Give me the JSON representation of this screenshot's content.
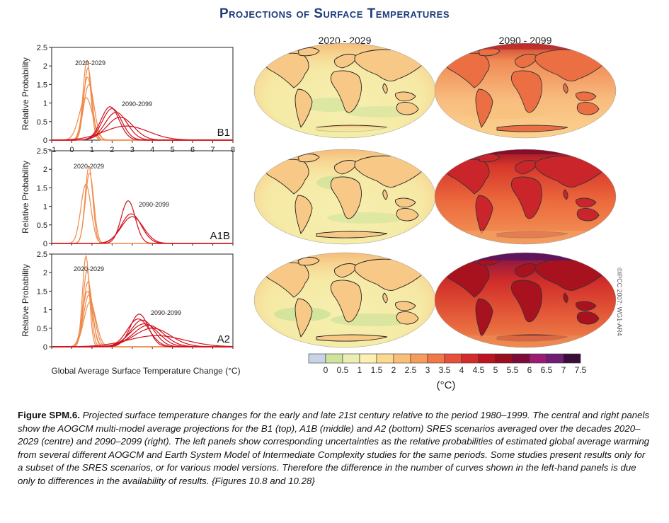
{
  "title": "Projections of Surface Temperatures",
  "copyright": "©IPCC 2007: WG1-AR4",
  "colors": {
    "title": "#1d3c7a",
    "early": "#f08a4b",
    "late": "#d0101e"
  },
  "map_columns": [
    "2020 - 2029",
    "2090 - 2099"
  ],
  "colorbar": {
    "label": "(°C)",
    "ticks": [
      "0",
      "0.5",
      "1",
      "1.5",
      "2",
      "2.5",
      "3",
      "3.5",
      "4",
      "4.5",
      "5",
      "5.5",
      "6",
      "6.5",
      "7",
      "7.5"
    ],
    "colors": [
      "#c9d3e7",
      "#cfe39a",
      "#ecedb3",
      "#fbf0b2",
      "#fbd98d",
      "#f9bf77",
      "#f59c5d",
      "#ef7748",
      "#e6503a",
      "#d42c2b",
      "#bd1421",
      "#9a0e1e",
      "#7e0a3c",
      "#9c1a74",
      "#721c73",
      "#3a0e3a"
    ]
  },
  "chart_data": [
    {
      "type": "line",
      "panel": "B1",
      "ylabel": "Relative Probability",
      "xlabel": "Global Average Surface Temperature Change (°C)",
      "xlim": [
        -1,
        8
      ],
      "ylim": [
        0,
        2.5
      ],
      "xticks": [
        "−1",
        "0",
        "1",
        "2",
        "3",
        "4",
        "5",
        "6",
        "7",
        "8"
      ],
      "yticks": [
        "0",
        "0.5",
        "1",
        "1.5",
        "2",
        "2.5"
      ],
      "annotations": [
        "2020-2029",
        "2090-2099"
      ],
      "series": [
        {
          "period": "2020-2029",
          "peak_x": 0.75,
          "peak_y": 2.15,
          "sigma": 0.19
        },
        {
          "period": "2020-2029",
          "peak_x": 0.8,
          "peak_y": 1.95,
          "sigma": 0.2
        },
        {
          "period": "2020-2029",
          "peak_x": 0.78,
          "peak_y": 1.7,
          "sigma": 0.23
        },
        {
          "period": "2020-2029",
          "peak_x": 0.85,
          "peak_y": 1.5,
          "sigma": 0.26
        },
        {
          "period": "2020-2029",
          "peak_x": 0.7,
          "peak_y": 1.15,
          "sigma": 0.33
        },
        {
          "period": "2090-2099",
          "peak_x": 1.9,
          "peak_y": 0.9,
          "sigma": 0.45
        },
        {
          "period": "2090-2099",
          "peak_x": 2.0,
          "peak_y": 0.85,
          "sigma": 0.48
        },
        {
          "period": "2090-2099",
          "peak_x": 2.2,
          "peak_y": 0.75,
          "sigma": 0.55
        },
        {
          "period": "2090-2099",
          "peak_x": 2.4,
          "peak_y": 0.62,
          "sigma": 0.65
        },
        {
          "period": "2090-2099",
          "peak_x": 2.7,
          "peak_y": 0.38,
          "sigma": 1.1
        }
      ]
    },
    {
      "type": "line",
      "panel": "A1B",
      "ylabel": "Relative Probability",
      "xlim": [
        -1,
        8
      ],
      "ylim": [
        0,
        2.5
      ],
      "yticks": [
        "0",
        "0.5",
        "1",
        "1.5",
        "2",
        "2.5"
      ],
      "annotations": [
        "2020-2029",
        "2090-2099"
      ],
      "series": [
        {
          "period": "2020-2029",
          "peak_x": 0.85,
          "peak_y": 2.08,
          "sigma": 0.19
        },
        {
          "period": "2020-2029",
          "peak_x": 0.88,
          "peak_y": 1.9,
          "sigma": 0.21
        },
        {
          "period": "2020-2029",
          "peak_x": 0.7,
          "peak_y": 1.6,
          "sigma": 0.25
        },
        {
          "period": "2090-2099",
          "peak_x": 2.8,
          "peak_y": 1.15,
          "sigma": 0.35
        },
        {
          "period": "2090-2099",
          "peak_x": 2.95,
          "peak_y": 0.8,
          "sigma": 0.5
        },
        {
          "period": "2090-2099",
          "peak_x": 3.0,
          "peak_y": 0.72,
          "sigma": 0.55
        }
      ]
    },
    {
      "type": "line",
      "panel": "A2",
      "ylabel": "Relative Probability",
      "xlim": [
        -1,
        8
      ],
      "ylim": [
        0,
        2.5
      ],
      "yticks": [
        "0",
        "0.5",
        "1",
        "1.5",
        "2",
        "2.5"
      ],
      "annotations": [
        "2020-2029",
        "2090-2099"
      ],
      "series": [
        {
          "period": "2020-2029",
          "peak_x": 0.7,
          "peak_y": 2.45,
          "sigma": 0.17
        },
        {
          "period": "2020-2029",
          "peak_x": 0.75,
          "peak_y": 2.05,
          "sigma": 0.19
        },
        {
          "period": "2020-2029",
          "peak_x": 0.8,
          "peak_y": 1.75,
          "sigma": 0.22
        },
        {
          "period": "2020-2029",
          "peak_x": 0.78,
          "peak_y": 1.5,
          "sigma": 0.25
        },
        {
          "period": "2020-2029",
          "peak_x": 0.85,
          "peak_y": 1.4,
          "sigma": 0.27
        },
        {
          "period": "2020-2029",
          "peak_x": 0.9,
          "peak_y": 1.2,
          "sigma": 0.3
        },
        {
          "period": "2090-2099",
          "peak_x": 3.35,
          "peak_y": 0.88,
          "sigma": 0.45
        },
        {
          "period": "2090-2099",
          "peak_x": 3.3,
          "peak_y": 0.75,
          "sigma": 0.55
        },
        {
          "period": "2090-2099",
          "peak_x": 3.5,
          "peak_y": 0.72,
          "sigma": 0.58
        },
        {
          "period": "2090-2099",
          "peak_x": 3.6,
          "peak_y": 0.62,
          "sigma": 0.7
        },
        {
          "period": "2090-2099",
          "peak_x": 3.8,
          "peak_y": 0.58,
          "sigma": 0.75
        },
        {
          "period": "2090-2099",
          "peak_x": 4.0,
          "peak_y": 0.5,
          "sigma": 0.9
        },
        {
          "period": "2090-2099",
          "peak_x": 4.2,
          "peak_y": 0.3,
          "sigma": 1.4
        }
      ]
    }
  ],
  "caption": {
    "label": "Figure SPM.6.",
    "text": " Projected surface temperature changes for the early and late 21st century relative to the period 1980–1999. The central and right panels show the AOGCM multi-model average projections for the B1 (top), A1B (middle) and A2 (bottom) SRES scenarios averaged over the decades 2020– 2029 (centre) and 2090–2099 (right). The left panels show corresponding uncertainties as the relative probabilities of estimated global average warming from several different AOGCM and Earth System Model of Intermediate Complexity studies for the same periods. Some studies present results only for a subset of the SRES scenarios, or for various model versions. Therefore the difference in the number of curves shown in the left-hand panels is due only to differences in the availability of results. {Figures 10.8 and 10.28}"
  }
}
